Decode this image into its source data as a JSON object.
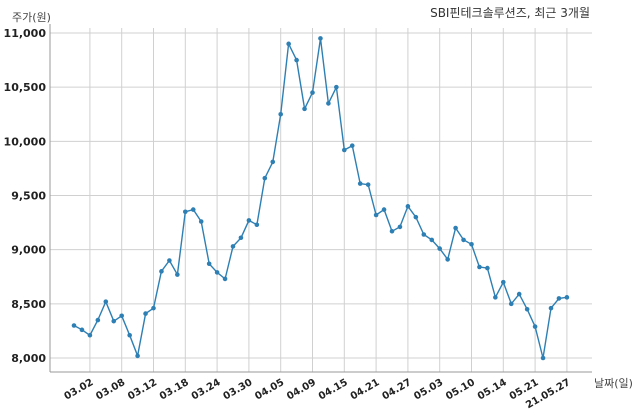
{
  "chart_data": {
    "type": "line",
    "title": "SBI핀테크솔루션즈, 최근 3개월",
    "ylabel": "주가(원)",
    "xlabel": "날짜(일)",
    "ylim": [
      7900,
      11050
    ],
    "yticks": [
      8000,
      8500,
      9000,
      9500,
      10000,
      10500,
      11000
    ],
    "ytick_labels": [
      "8,000",
      "8,500",
      "9,000",
      "9,500",
      "10,000",
      "10,500",
      "11,000"
    ],
    "xtick_labels": [
      "03.02",
      "03.08",
      "03.12",
      "03.18",
      "03.24",
      "03.30",
      "04.05",
      "04.09",
      "04.15",
      "04.21",
      "04.27",
      "05.03",
      "05.10",
      "05.14",
      "05.21",
      "21.05.27"
    ],
    "xtick_positions": [
      2,
      6,
      10,
      14,
      18,
      22,
      26,
      30,
      34,
      38,
      42,
      46,
      50,
      54,
      58,
      62
    ],
    "grid": true,
    "color": "#2e7fb3",
    "series": [
      {
        "values": [
          8300,
          8260,
          8210,
          8350,
          8520,
          8340,
          8390,
          8210,
          8020,
          8410,
          8460,
          8800,
          8900,
          8770,
          9350,
          9370,
          9260,
          8870,
          8790,
          8730,
          9030,
          9110,
          9270,
          9230,
          9660,
          9810,
          10250,
          10900,
          10750,
          10300,
          10450,
          10950,
          10350,
          10500,
          9920,
          9960,
          9610,
          9600,
          9320,
          9370,
          9170,
          9210,
          9400,
          9300,
          9140,
          9090,
          9010,
          8910,
          9200,
          9090,
          9050,
          8840,
          8830,
          8560,
          8700,
          8500,
          8590,
          8450,
          8290,
          8000,
          8460,
          8550,
          8560
        ]
      }
    ]
  }
}
